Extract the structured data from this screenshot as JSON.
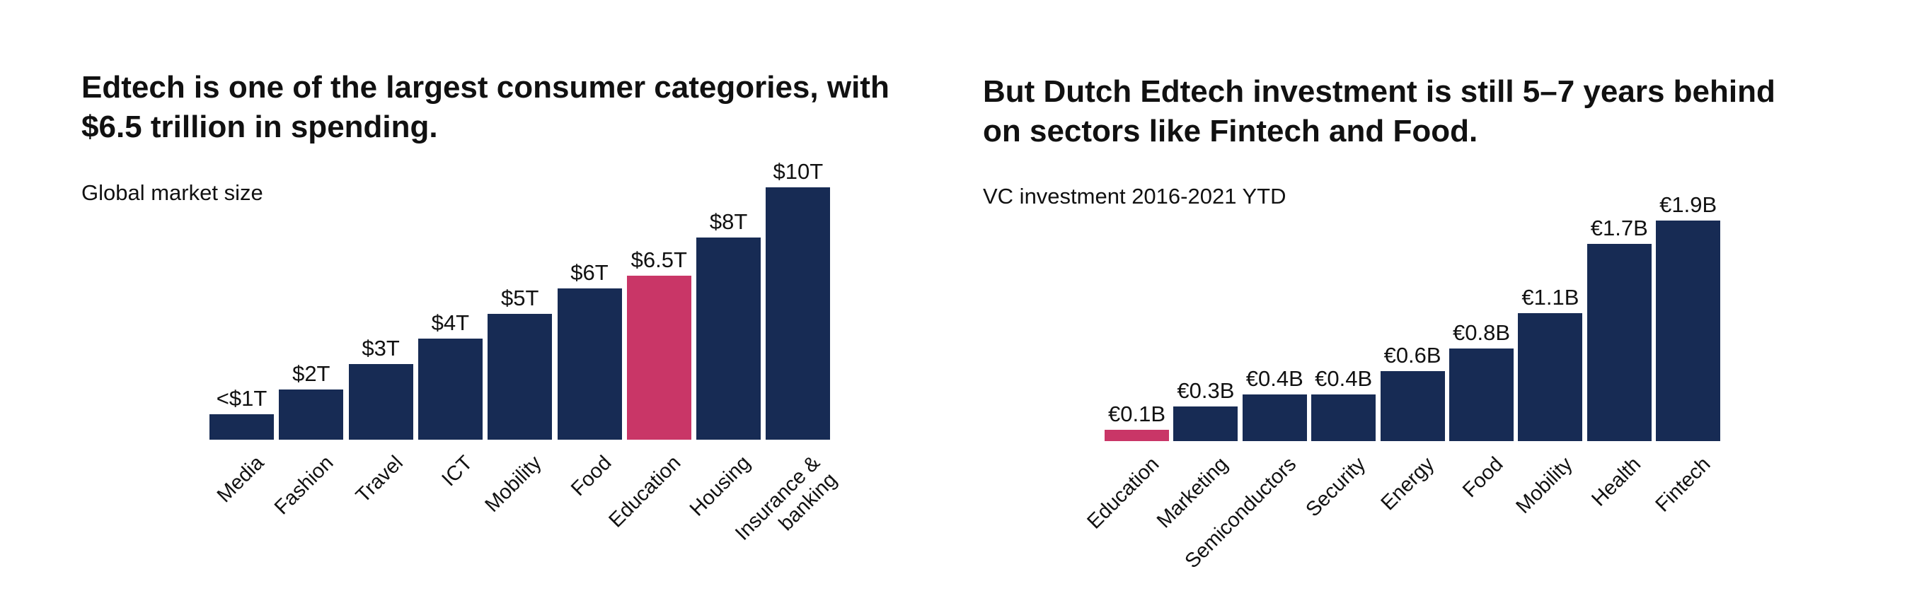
{
  "chart_data": [
    {
      "type": "bar",
      "title": "Edtech is one of the largest consumer categories, with $6.5 trillion in spending.",
      "subtitle": "Global market size",
      "categories": [
        "Media",
        "Fashion",
        "Travel",
        "ICT",
        "Mobility",
        "Food",
        "Education",
        "Housing",
        "Insurance &\nbanking"
      ],
      "values": [
        1,
        2,
        3,
        4,
        5,
        6,
        6.5,
        8,
        10
      ],
      "value_labels": [
        "<$1T",
        "$2T",
        "$3T",
        "$4T",
        "$5T",
        "$6T",
        "$6.5T",
        "$8T",
        "$10T"
      ],
      "colors": [
        "#172b54",
        "#172b54",
        "#172b54",
        "#172b54",
        "#172b54",
        "#172b54",
        "#c93667",
        "#172b54",
        "#172b54"
      ]
    },
    {
      "type": "bar",
      "title": "But Dutch Edtech investment is still 5–7 years behind on sectors like Fintech and Food.",
      "subtitle": "VC investment 2016-2021 YTD",
      "categories": [
        "Education",
        "Marketing",
        "Semiconductors",
        "Security",
        "Energy",
        "Food",
        "Mobility",
        "Health",
        "Fintech"
      ],
      "values": [
        0.1,
        0.3,
        0.4,
        0.4,
        0.6,
        0.8,
        1.1,
        1.7,
        1.9
      ],
      "value_labels": [
        "€0.1B",
        "€0.3B",
        "€0.4B",
        "€0.4B",
        "€0.6B",
        "€0.8B",
        "€1.1B",
        "€1.7B",
        "€1.9B"
      ],
      "colors": [
        "#c93667",
        "#172b54",
        "#172b54",
        "#172b54",
        "#172b54",
        "#172b54",
        "#172b54",
        "#172b54",
        "#172b54"
      ]
    }
  ]
}
